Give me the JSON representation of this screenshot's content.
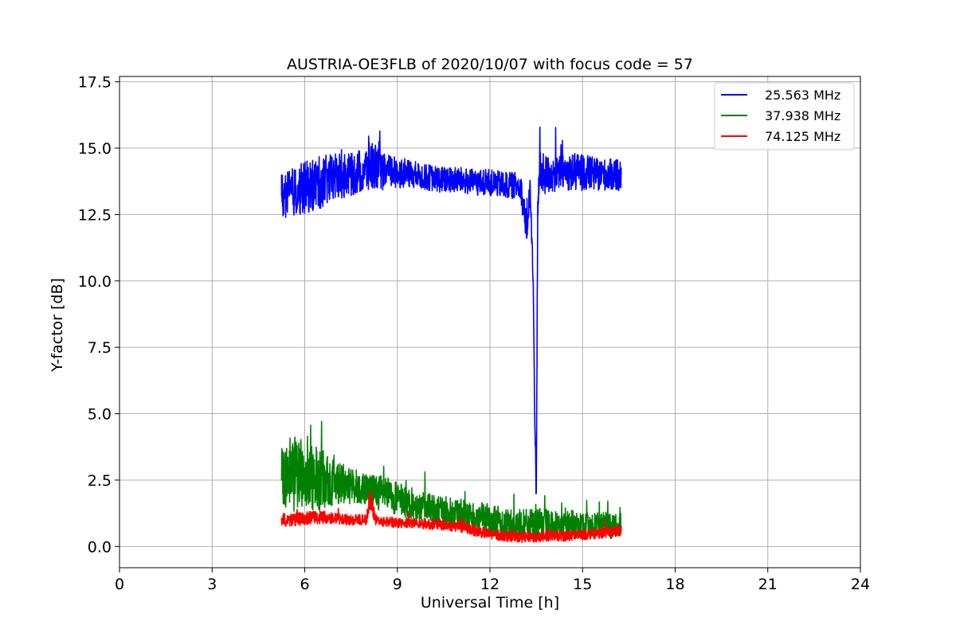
{
  "chart_data": {
    "type": "line",
    "title": "AUSTRIA-OE3FLB of 2020/10/07 with focus code = 57",
    "xlabel": "Universal Time [h]",
    "ylabel": "Y-factor [dB]",
    "xlim": [
      0,
      24
    ],
    "ylim": [
      -0.8,
      17.7
    ],
    "xticks": [
      0,
      3,
      6,
      9,
      12,
      15,
      18,
      21,
      24
    ],
    "xtick_labels": [
      "0",
      "3",
      "6",
      "9",
      "12",
      "15",
      "18",
      "21",
      "24"
    ],
    "yticks": [
      0.0,
      2.5,
      5.0,
      7.5,
      10.0,
      12.5,
      15.0,
      17.5
    ],
    "ytick_labels": [
      "0.0",
      "2.5",
      "5.0",
      "7.5",
      "10.0",
      "12.5",
      "15.0",
      "17.5"
    ],
    "grid": true,
    "legend_position": "top-right",
    "series": [
      {
        "name": "25.563 MHz",
        "color": "#0000ff",
        "x": [
          5.25,
          5.5,
          6.0,
          6.5,
          7.0,
          7.5,
          8.0,
          8.1,
          8.3,
          8.5,
          9.0,
          9.5,
          10.0,
          10.5,
          11.0,
          11.5,
          12.0,
          12.5,
          13.0,
          13.1,
          13.2,
          13.3,
          13.4,
          13.45,
          13.5,
          13.55,
          13.6,
          13.7,
          14.0,
          14.5,
          15.0,
          15.5,
          16.0,
          16.25
        ],
        "y": [
          13.2,
          13.3,
          13.5,
          13.7,
          13.9,
          14.0,
          14.2,
          14.4,
          14.3,
          14.1,
          14.1,
          14.0,
          13.9,
          13.8,
          13.8,
          13.7,
          13.7,
          13.6,
          13.6,
          12.5,
          12.0,
          13.5,
          10.0,
          5.0,
          2.0,
          13.0,
          14.0,
          14.0,
          14.0,
          14.1,
          14.1,
          14.0,
          14.0,
          14.0
        ],
        "range": [
          0.9,
          0.9,
          1.0,
          1.0,
          0.9,
          0.8,
          0.9,
          1.2,
          0.8,
          0.7,
          0.6,
          0.5,
          0.5,
          0.5,
          0.5,
          0.5,
          0.5,
          0.5,
          0.5,
          0.6,
          0.6,
          0.5,
          0.5,
          0.5,
          0.5,
          0.7,
          0.9,
          0.8,
          0.7,
          0.7,
          0.7,
          0.6,
          0.6,
          0.6
        ]
      },
      {
        "name": "37.938 MHz",
        "color": "#008000",
        "x": [
          5.25,
          5.5,
          6.0,
          6.5,
          7.0,
          7.5,
          8.0,
          8.5,
          9.0,
          9.5,
          10.0,
          10.5,
          11.0,
          11.5,
          12.0,
          12.5,
          13.0,
          13.5,
          14.0,
          14.5,
          15.0,
          15.5,
          16.0,
          16.25
        ],
        "y": [
          2.5,
          2.8,
          2.7,
          2.5,
          2.4,
          2.3,
          2.2,
          2.0,
          1.8,
          1.6,
          1.4,
          1.3,
          1.2,
          1.1,
          1.0,
          0.9,
          0.8,
          0.8,
          0.8,
          0.8,
          0.8,
          0.8,
          0.8,
          0.8
        ],
        "range": [
          1.0,
          1.5,
          1.3,
          1.2,
          0.8,
          0.7,
          0.6,
          0.7,
          0.6,
          0.6,
          0.6,
          0.6,
          0.6,
          0.6,
          0.6,
          0.6,
          0.6,
          0.6,
          0.6,
          0.6,
          0.5,
          0.5,
          0.5,
          0.5
        ]
      },
      {
        "name": "74.125 MHz",
        "color": "#ff0000",
        "x": [
          5.25,
          5.5,
          6.0,
          6.5,
          7.0,
          7.5,
          8.0,
          8.1,
          8.3,
          8.5,
          9.0,
          9.5,
          10.0,
          10.5,
          11.0,
          11.5,
          12.0,
          12.5,
          13.0,
          13.5,
          14.0,
          14.5,
          15.0,
          15.5,
          16.0,
          16.25
        ],
        "y": [
          1.0,
          1.0,
          1.05,
          1.1,
          1.05,
          1.0,
          1.0,
          1.8,
          1.0,
          0.95,
          0.9,
          0.9,
          0.85,
          0.8,
          0.75,
          0.6,
          0.45,
          0.4,
          0.35,
          0.35,
          0.4,
          0.4,
          0.45,
          0.5,
          0.55,
          0.6
        ],
        "range": [
          0.25,
          0.25,
          0.25,
          0.25,
          0.2,
          0.2,
          0.2,
          0.4,
          0.2,
          0.2,
          0.2,
          0.2,
          0.2,
          0.2,
          0.2,
          0.2,
          0.2,
          0.2,
          0.2,
          0.2,
          0.2,
          0.2,
          0.2,
          0.2,
          0.2,
          0.2
        ]
      }
    ]
  }
}
